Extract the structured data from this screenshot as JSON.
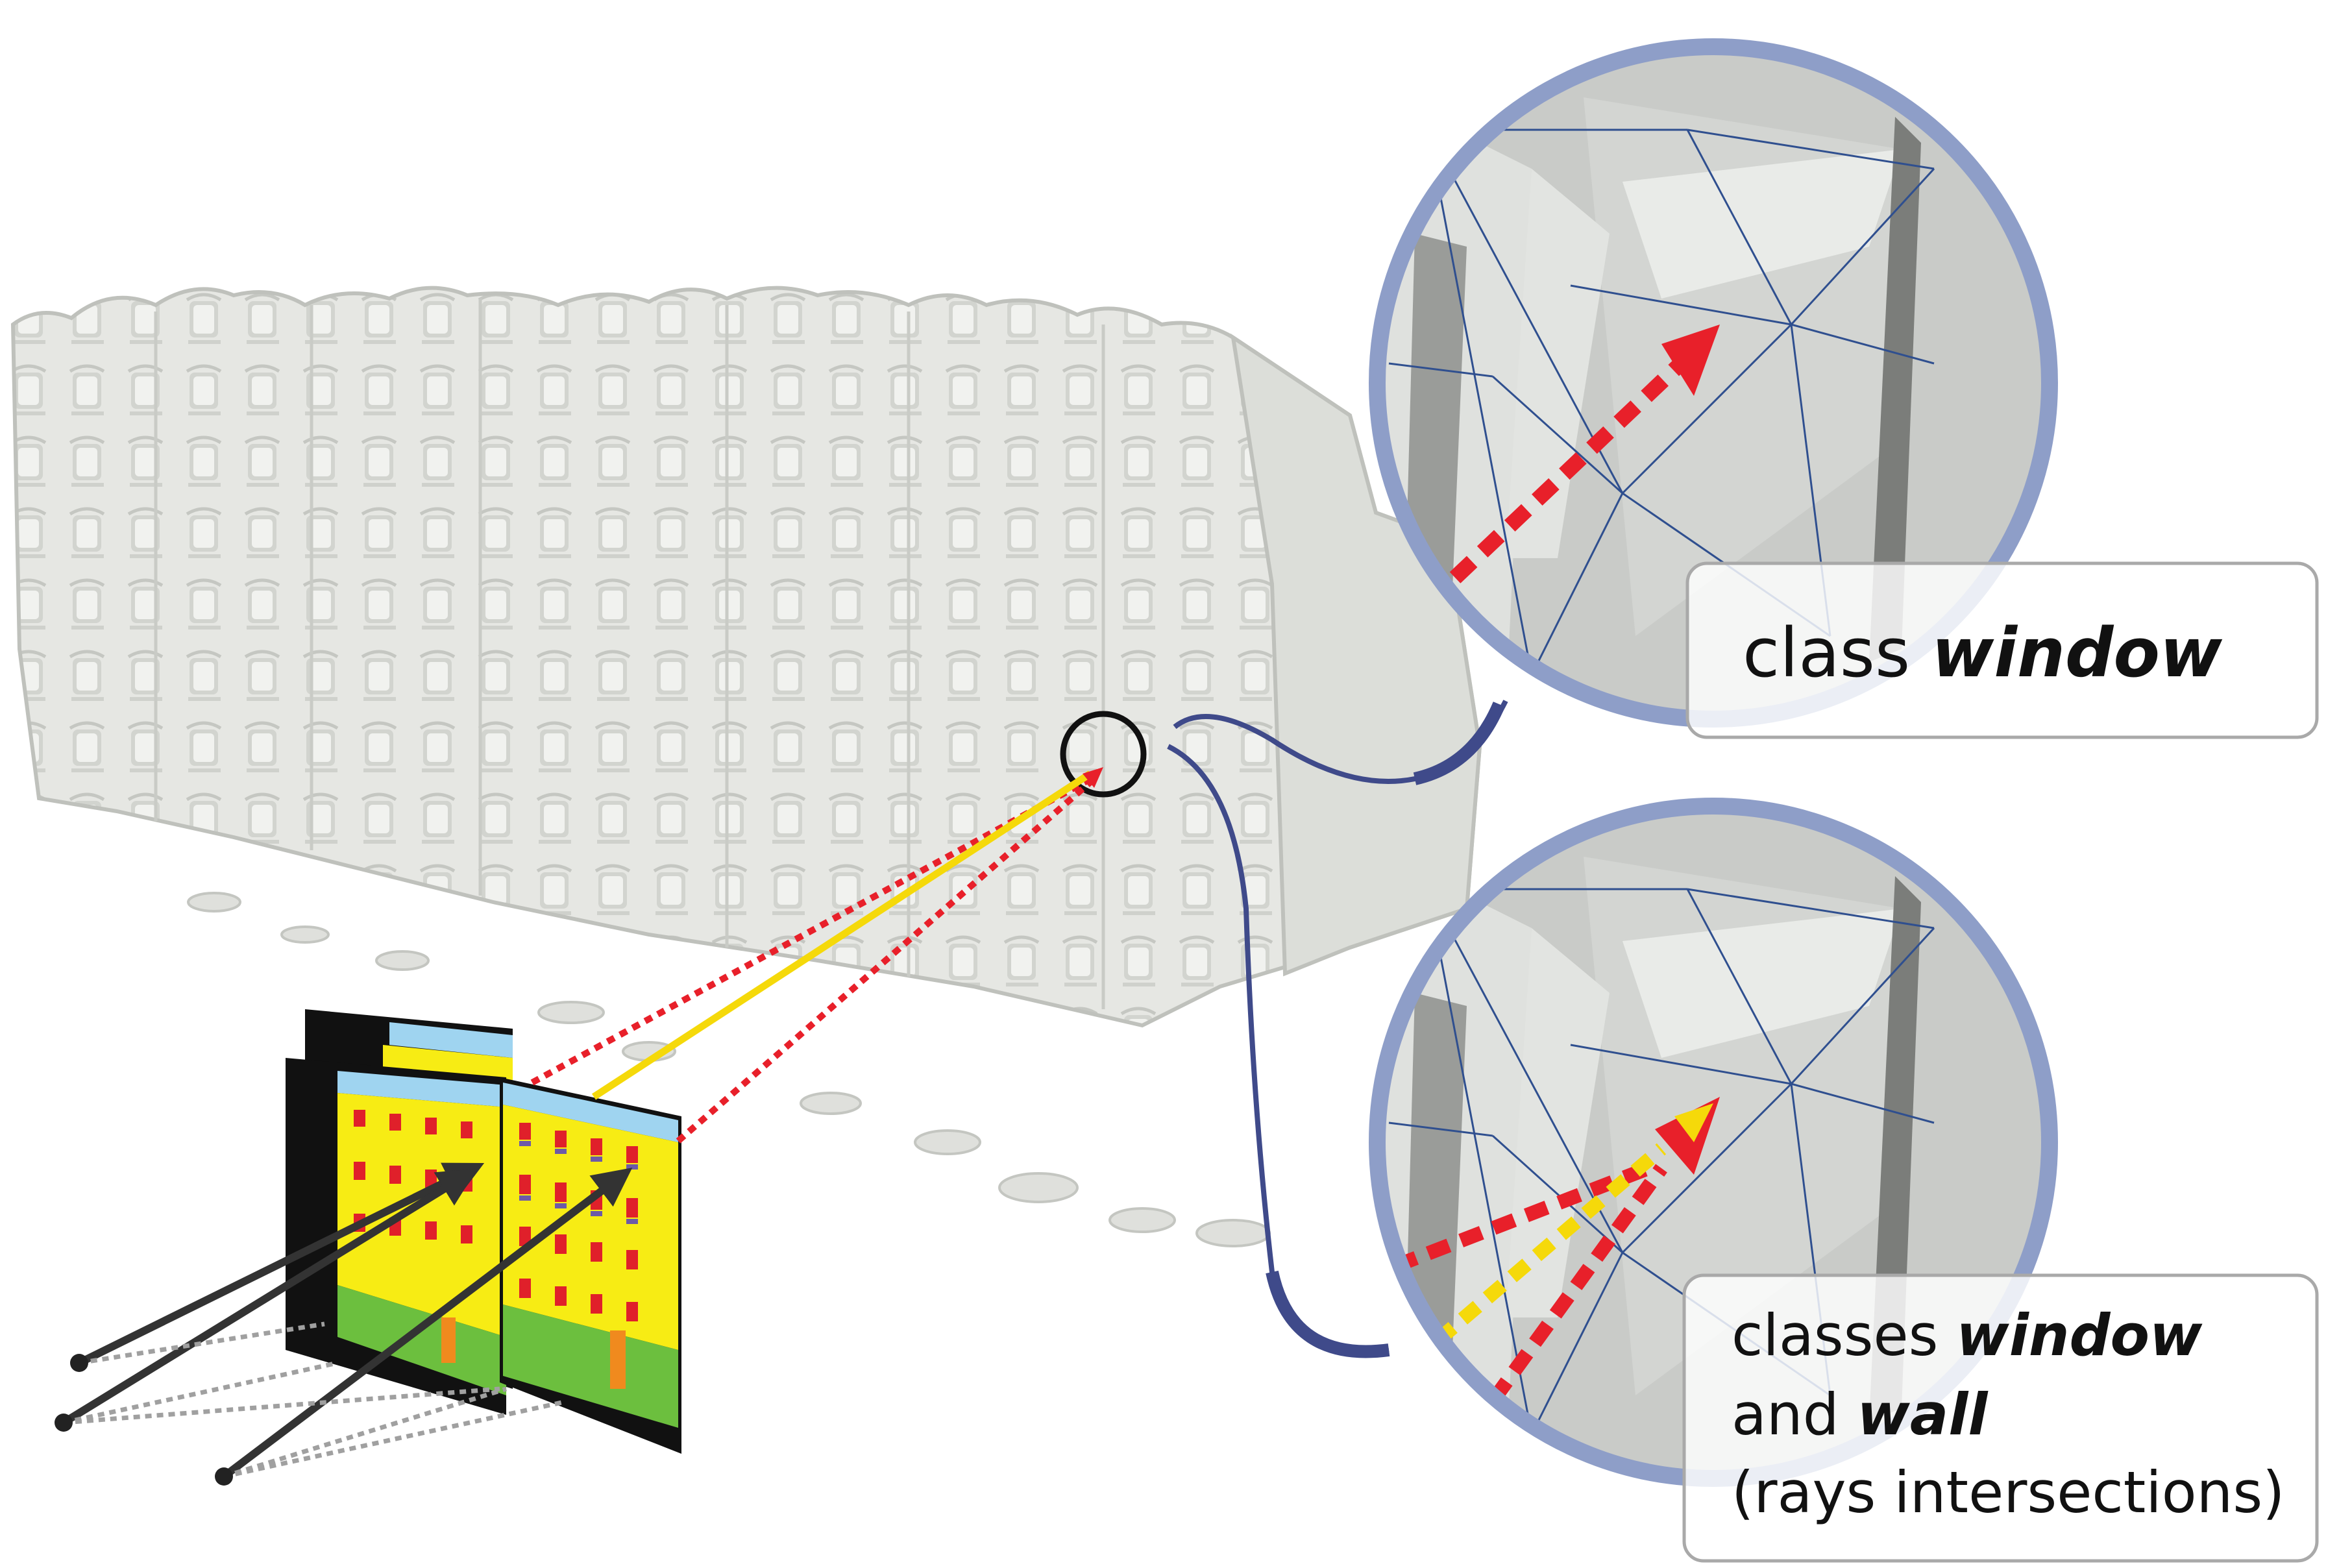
{
  "callouts": {
    "top": {
      "prefix": "class ",
      "emphasis": "window"
    },
    "bottom": {
      "line1_prefix": "classes ",
      "line1_emphasis": "window",
      "line2_prefix": "and ",
      "line2_emphasis": "wall",
      "line3": "(rays intersections)"
    }
  },
  "colors": {
    "mesh": "#e8e9e6",
    "mesh_shadow": "#b9bbb7",
    "lens_ring": "#8e9ec8",
    "lens_fill": "#c9cbc8",
    "connector": "#3f4a8a",
    "ray_red": "#e8202a",
    "ray_yellow": "#f5d90a",
    "label_wall": "#f7ec14",
    "label_window": "#e0202a",
    "label_sky": "#9fd4f0",
    "label_ground": "#6cbf3e",
    "label_door": "#f08a1e",
    "label_sill": "#6d5aa8"
  },
  "icons": [
    "magnifier-lens-icon",
    "camera-center-icon",
    "ray-arrow-icon"
  ]
}
